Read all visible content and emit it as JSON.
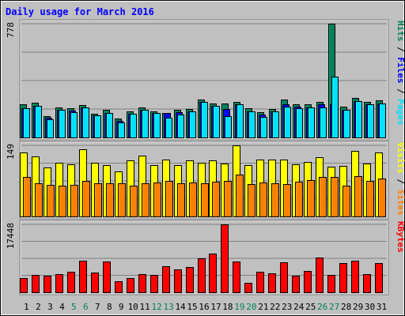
{
  "chart_data": {
    "type": "bar",
    "title": "Daily usage for March 2016",
    "days": [
      "1",
      "2",
      "3",
      "4",
      "5",
      "6",
      "7",
      "8",
      "9",
      "10",
      "11",
      "12",
      "13",
      "14",
      "15",
      "16",
      "17",
      "18",
      "19",
      "20",
      "21",
      "22",
      "23",
      "24",
      "25",
      "26",
      "27",
      "28",
      "29",
      "30",
      "31"
    ],
    "weekend_days": [
      "5",
      "6",
      "12",
      "13",
      "19",
      "20",
      "26",
      "27"
    ],
    "colors": {
      "background": "#c0c0c0",
      "title": "#0000ff",
      "hits": "#00805c",
      "files": "#0000ff",
      "pages": "#00e0ff",
      "visits": "#ffff00",
      "sites": "#ff8000",
      "kbytes": "#ff0000",
      "weekend_label": "#00805c",
      "weekday_label": "#000000"
    },
    "panels": [
      {
        "id": "hits_files_pages",
        "max_label": "778",
        "ymax": 778,
        "legend": [
          {
            "text": "Hits",
            "color": "#00805c"
          },
          {
            "text": " / ",
            "color": "#000000"
          },
          {
            "text": "Files",
            "color": "#0000ff"
          },
          {
            "text": " / ",
            "color": "#000000"
          },
          {
            "text": "Pages",
            "color": "#00e0ff"
          }
        ],
        "series": [
          {
            "name": "Hits",
            "color": "#00805c",
            "values": [
              225,
              236,
              147,
              206,
              202,
              222,
              163,
              188,
              130,
              177,
              208,
              180,
              170,
              187,
              196,
              262,
              235,
              233,
              242,
              198,
              172,
              193,
              258,
              225,
              226,
              241,
              778,
              209,
              271,
              241,
              256
            ]
          },
          {
            "name": "Files",
            "color": "#0000ff",
            "values": [
              202,
              215,
              133,
              188,
              184,
              204,
              151,
              170,
              116,
              160,
              188,
              170,
              165,
              172,
              178,
              245,
              215,
              195,
              225,
              179,
              159,
              176,
              227,
              213,
              207,
              227,
              225,
              191,
              250,
              229,
              232
            ]
          },
          {
            "name": "Pages",
            "color": "#00e0ff",
            "values": [
              202,
              215,
              125,
              188,
              175,
              204,
              151,
              170,
              102,
              160,
              188,
              165,
              136,
              157,
              178,
              245,
              215,
              148,
              225,
              179,
              140,
              176,
              210,
              202,
              207,
              206,
              418,
              191,
              250,
              229,
              232
            ]
          }
        ]
      },
      {
        "id": "visits_sites",
        "max_label": "149",
        "ymax": 149,
        "legend": [
          {
            "text": "Visits",
            "color": "#ffff00"
          },
          {
            "text": " / ",
            "color": "#000000"
          },
          {
            "text": "Sites",
            "color": "#ff8000"
          }
        ],
        "series": [
          {
            "name": "Visits",
            "color": "#ffff00",
            "values": [
              134,
              125,
              102,
              113,
              110,
              140,
              113,
              107,
              94,
              117,
              127,
              107,
              120,
              108,
              117,
              113,
              117,
              111,
              149,
              108,
              119,
              120,
              119,
              110,
              114,
              124,
              104,
              106,
              137,
              111,
              134
            ]
          },
          {
            "name": "Sites",
            "color": "#ff8000",
            "values": [
              82,
              69,
              67,
              64,
              67,
              75,
              70,
              70,
              70,
              64,
              70,
              72,
              75,
              70,
              72,
              70,
              73,
              74,
              88,
              68,
              71,
              70,
              68,
              73,
              76,
              82,
              82,
              65,
              85,
              75,
              80
            ]
          }
        ]
      },
      {
        "id": "kbytes",
        "max_label": "17448",
        "ymax": 17448,
        "legend": [
          {
            "text": "KBytes",
            "color": "#ff0000"
          }
        ],
        "series": [
          {
            "name": "KBytes",
            "color": "#ff0000",
            "values": [
              3660,
              4380,
              4270,
              4690,
              5340,
              8060,
              5020,
              7890,
              2940,
              3630,
              4750,
              4560,
              6610,
              5830,
              6490,
              8660,
              9970,
              17448,
              7860,
              2470,
              5310,
              4920,
              7670,
              4330,
              5550,
              8880,
              4550,
              7450,
              8190,
              4730,
              7510
            ]
          }
        ]
      }
    ]
  }
}
